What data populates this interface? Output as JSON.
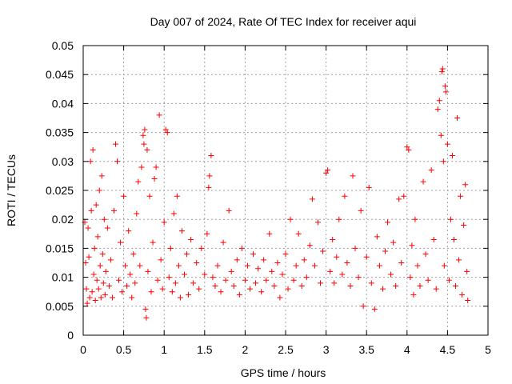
{
  "chart_data": {
    "type": "scatter",
    "title": "Day 007 of 2024, Rate Of TEC Index for receiver aqui",
    "xlabel": "GPS time / hours",
    "ylabel": "ROTI / TECUs",
    "xlim": [
      0,
      5
    ],
    "ylim": [
      0,
      0.05
    ],
    "xticks": [
      0,
      0.5,
      1,
      1.5,
      2,
      2.5,
      3,
      3.5,
      4,
      4.5,
      5
    ],
    "xtick_labels": [
      "0",
      "0.5",
      "1",
      "1.5",
      "2",
      "2.5",
      "3",
      "3.5",
      "4",
      "4.5",
      "5"
    ],
    "yticks": [
      0,
      0.005,
      0.01,
      0.015,
      0.02,
      0.025,
      0.03,
      0.035,
      0.04,
      0.045,
      0.05
    ],
    "ytick_labels": [
      "0",
      "0.005",
      "0.01",
      "0.015",
      "0.02",
      "0.025",
      "0.03",
      "0.035",
      "0.04",
      "0.045",
      "0.05"
    ],
    "grid": true,
    "marker": "+",
    "marker_color": "#ff0000",
    "series": [
      {
        "name": "ROTI",
        "points": [
          [
            0.02,
            0.0195
          ],
          [
            0.03,
            0.0125
          ],
          [
            0.04,
            0.008
          ],
          [
            0.05,
            0.0055
          ],
          [
            0.06,
            0.0185
          ],
          [
            0.07,
            0.0135
          ],
          [
            0.08,
            0.0065
          ],
          [
            0.09,
            0.03
          ],
          [
            0.1,
            0.0215
          ],
          [
            0.11,
            0.0075
          ],
          [
            0.12,
            0.032
          ],
          [
            0.13,
            0.0105
          ],
          [
            0.14,
            0.015
          ],
          [
            0.15,
            0.006
          ],
          [
            0.16,
            0.0225
          ],
          [
            0.17,
            0.0095
          ],
          [
            0.18,
            0.017
          ],
          [
            0.19,
            0.008
          ],
          [
            0.2,
            0.025
          ],
          [
            0.21,
            0.012
          ],
          [
            0.22,
            0.0065
          ],
          [
            0.23,
            0.0275
          ],
          [
            0.24,
            0.014
          ],
          [
            0.25,
            0.009
          ],
          [
            0.26,
            0.02
          ],
          [
            0.27,
            0.007
          ],
          [
            0.28,
            0.011
          ],
          [
            0.3,
            0.0185
          ],
          [
            0.32,
            0.0085
          ],
          [
            0.34,
            0.013
          ],
          [
            0.36,
            0.0065
          ],
          [
            0.38,
            0.0215
          ],
          [
            0.4,
            0.033
          ],
          [
            0.42,
            0.03
          ],
          [
            0.44,
            0.0095
          ],
          [
            0.46,
            0.016
          ],
          [
            0.48,
            0.0075
          ],
          [
            0.5,
            0.024
          ],
          [
            0.52,
            0.012
          ],
          [
            0.54,
            0.0085
          ],
          [
            0.56,
            0.018
          ],
          [
            0.58,
            0.0105
          ],
          [
            0.6,
            0.0065
          ],
          [
            0.62,
            0.014
          ],
          [
            0.64,
            0.009
          ],
          [
            0.66,
            0.021
          ],
          [
            0.68,
            0.0265
          ],
          [
            0.7,
            0.012
          ],
          [
            0.72,
            0.029
          ],
          [
            0.74,
            0.0345
          ],
          [
            0.75,
            0.033
          ],
          [
            0.76,
            0.0355
          ],
          [
            0.77,
            0.0045
          ],
          [
            0.78,
            0.003
          ],
          [
            0.79,
            0.032
          ],
          [
            0.8,
            0.011
          ],
          [
            0.82,
            0.024
          ],
          [
            0.84,
            0.0075
          ],
          [
            0.86,
            0.016
          ],
          [
            0.88,
            0.027
          ],
          [
            0.9,
            0.029
          ],
          [
            0.92,
            0.0095
          ],
          [
            0.94,
            0.038
          ],
          [
            0.96,
            0.013
          ],
          [
            0.98,
            0.008
          ],
          [
            1.0,
            0.0195
          ],
          [
            1.02,
            0.0355
          ],
          [
            1.04,
            0.035
          ],
          [
            1.06,
            0.01
          ],
          [
            1.08,
            0.015
          ],
          [
            1.1,
            0.0075
          ],
          [
            1.12,
            0.021
          ],
          [
            1.14,
            0.009
          ],
          [
            1.16,
            0.024
          ],
          [
            1.18,
            0.012
          ],
          [
            1.2,
            0.0065
          ],
          [
            1.22,
            0.018
          ],
          [
            1.25,
            0.0105
          ],
          [
            1.28,
            0.014
          ],
          [
            1.3,
            0.007
          ],
          [
            1.33,
            0.0165
          ],
          [
            1.36,
            0.009
          ],
          [
            1.4,
            0.0125
          ],
          [
            1.43,
            0.008
          ],
          [
            1.46,
            0.015
          ],
          [
            1.5,
            0.0105
          ],
          [
            1.53,
            0.0175
          ],
          [
            1.55,
            0.0255
          ],
          [
            1.56,
            0.0275
          ],
          [
            1.58,
            0.031
          ],
          [
            1.6,
            0.01
          ],
          [
            1.63,
            0.0085
          ],
          [
            1.66,
            0.012
          ],
          [
            1.7,
            0.0075
          ],
          [
            1.73,
            0.016
          ],
          [
            1.76,
            0.0095
          ],
          [
            1.8,
            0.0215
          ],
          [
            1.83,
            0.011
          ],
          [
            1.86,
            0.0085
          ],
          [
            1.9,
            0.013
          ],
          [
            1.93,
            0.007
          ],
          [
            1.96,
            0.015
          ],
          [
            2.0,
            0.0095
          ],
          [
            2.03,
            0.012
          ],
          [
            2.06,
            0.008
          ],
          [
            2.1,
            0.014
          ],
          [
            2.13,
            0.009
          ],
          [
            2.16,
            0.0115
          ],
          [
            2.2,
            0.0075
          ],
          [
            2.23,
            0.013
          ],
          [
            2.26,
            0.0095
          ],
          [
            2.3,
            0.0175
          ],
          [
            2.33,
            0.011
          ],
          [
            2.36,
            0.0085
          ],
          [
            2.4,
            0.0125
          ],
          [
            2.43,
            0.0065
          ],
          [
            2.46,
            0.0105
          ],
          [
            2.5,
            0.014
          ],
          [
            2.53,
            0.008
          ],
          [
            2.56,
            0.02
          ],
          [
            2.6,
            0.0095
          ],
          [
            2.63,
            0.012
          ],
          [
            2.66,
            0.0175
          ],
          [
            2.7,
            0.0085
          ],
          [
            2.73,
            0.013
          ],
          [
            2.76,
            0.01
          ],
          [
            2.8,
            0.0155
          ],
          [
            2.83,
            0.0235
          ],
          [
            2.86,
            0.012
          ],
          [
            2.9,
            0.0195
          ],
          [
            2.93,
            0.009
          ],
          [
            2.96,
            0.0145
          ],
          [
            3.0,
            0.028
          ],
          [
            3.02,
            0.0285
          ],
          [
            3.05,
            0.011
          ],
          [
            3.08,
            0.0165
          ],
          [
            3.1,
            0.009
          ],
          [
            3.13,
            0.0135
          ],
          [
            3.16,
            0.02
          ],
          [
            3.2,
            0.0105
          ],
          [
            3.23,
            0.024
          ],
          [
            3.26,
            0.0125
          ],
          [
            3.3,
            0.0085
          ],
          [
            3.33,
            0.0275
          ],
          [
            3.36,
            0.015
          ],
          [
            3.4,
            0.01
          ],
          [
            3.43,
            0.0215
          ],
          [
            3.46,
            0.005
          ],
          [
            3.5,
            0.0135
          ],
          [
            3.53,
            0.0255
          ],
          [
            3.56,
            0.009
          ],
          [
            3.6,
            0.0045
          ],
          [
            3.63,
            0.017
          ],
          [
            3.66,
            0.012
          ],
          [
            3.7,
            0.008
          ],
          [
            3.73,
            0.0145
          ],
          [
            3.76,
            0.0195
          ],
          [
            3.8,
            0.0105
          ],
          [
            3.83,
            0.016
          ],
          [
            3.86,
            0.0085
          ],
          [
            3.9,
            0.0235
          ],
          [
            3.93,
            0.0125
          ],
          [
            3.96,
            0.024
          ],
          [
            4.0,
            0.0325
          ],
          [
            4.02,
            0.032
          ],
          [
            4.04,
            0.01
          ],
          [
            4.06,
            0.0155
          ],
          [
            4.08,
            0.007
          ],
          [
            4.1,
            0.02
          ],
          [
            4.13,
            0.012
          ],
          [
            4.16,
            0.0085
          ],
          [
            4.2,
            0.0265
          ],
          [
            4.23,
            0.014
          ],
          [
            4.26,
            0.0095
          ],
          [
            4.3,
            0.0285
          ],
          [
            4.33,
            0.0165
          ],
          [
            4.36,
            0.008
          ],
          [
            4.38,
            0.039
          ],
          [
            4.4,
            0.0405
          ],
          [
            4.42,
            0.0345
          ],
          [
            4.43,
            0.0455
          ],
          [
            4.44,
            0.046
          ],
          [
            4.45,
            0.03
          ],
          [
            4.46,
            0.012
          ],
          [
            4.47,
            0.043
          ],
          [
            4.48,
            0.042
          ],
          [
            4.5,
            0.033
          ],
          [
            4.52,
            0.0095
          ],
          [
            4.54,
            0.02
          ],
          [
            4.56,
            0.031
          ],
          [
            4.58,
            0.0165
          ],
          [
            4.6,
            0.0085
          ],
          [
            4.62,
            0.0375
          ],
          [
            4.64,
            0.013
          ],
          [
            4.66,
            0.024
          ],
          [
            4.68,
            0.007
          ],
          [
            4.7,
            0.019
          ],
          [
            4.72,
            0.026
          ],
          [
            4.74,
            0.011
          ],
          [
            4.75,
            0.006
          ]
        ]
      }
    ]
  }
}
